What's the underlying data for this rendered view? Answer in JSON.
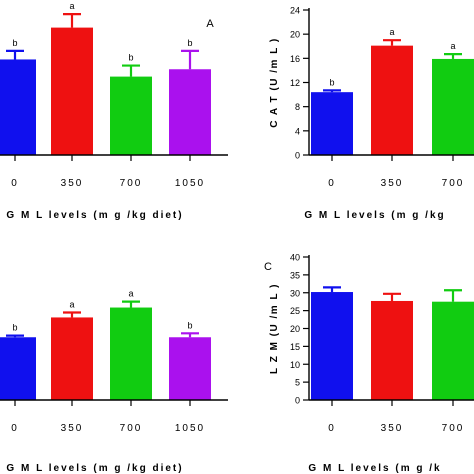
{
  "chart_data": [
    {
      "type": "bar",
      "panel_label": "A",
      "categories": [
        "0",
        "350",
        "700",
        "1050"
      ],
      "values": [
        3.9,
        5.2,
        3.2,
        3.5
      ],
      "errors": [
        0.35,
        0.55,
        0.45,
        0.75
      ],
      "letters": [
        "b",
        "a",
        "b",
        "b"
      ],
      "colors": [
        "#1010ee",
        "#ee1111",
        "#11cc11",
        "#aa11ee"
      ],
      "xlabel": "G M L  levels  (m g /kg  diet)",
      "ylabel": "",
      "ylim": [
        0,
        6
      ],
      "yticks": []
    },
    {
      "type": "bar",
      "panel_label": "",
      "categories": [
        "0",
        "350",
        "700"
      ],
      "values": [
        10.4,
        18.1,
        15.9
      ],
      "errors": [
        0.3,
        0.9,
        0.8
      ],
      "letters": [
        "b",
        "a",
        "a"
      ],
      "colors": [
        "#1010ee",
        "#ee1111",
        "#11cc11"
      ],
      "xlabel": "G M L  levels  (m g /kg",
      "ylabel": "C A T  (U /m L )",
      "ylim": [
        0,
        24
      ],
      "yticks": [
        "0",
        "4",
        "8",
        "12",
        "16",
        "20",
        "24"
      ]
    },
    {
      "type": "bar",
      "panel_label": "C",
      "categories": [
        "0",
        "350",
        "700",
        "1050"
      ],
      "values": [
        1.9,
        2.5,
        2.8,
        1.9
      ],
      "errors": [
        0.05,
        0.15,
        0.18,
        0.12
      ],
      "letters": [
        "b",
        "a",
        "a",
        "b"
      ],
      "colors": [
        "#1010ee",
        "#ee1111",
        "#11cc11",
        "#aa11ee"
      ],
      "xlabel": "G M L  levels  (m g /kg  diet)",
      "ylabel": "",
      "ylim": [
        0,
        4.3
      ],
      "yticks": []
    },
    {
      "type": "bar",
      "panel_label": "",
      "categories": [
        "0",
        "350",
        "700"
      ],
      "values": [
        30.2,
        27.7,
        27.5
      ],
      "errors": [
        1.3,
        2.0,
        3.2
      ],
      "letters": [
        "",
        "",
        ""
      ],
      "colors": [
        "#1010ee",
        "#ee1111",
        "#11cc11"
      ],
      "xlabel": "G M L  levels  (m g /k",
      "ylabel": "L Z M  (U /m L )",
      "ylim": [
        0,
        40
      ],
      "yticks": [
        "0",
        "5",
        "10",
        "15",
        "20",
        "25",
        "30",
        "35",
        "40"
      ]
    }
  ]
}
